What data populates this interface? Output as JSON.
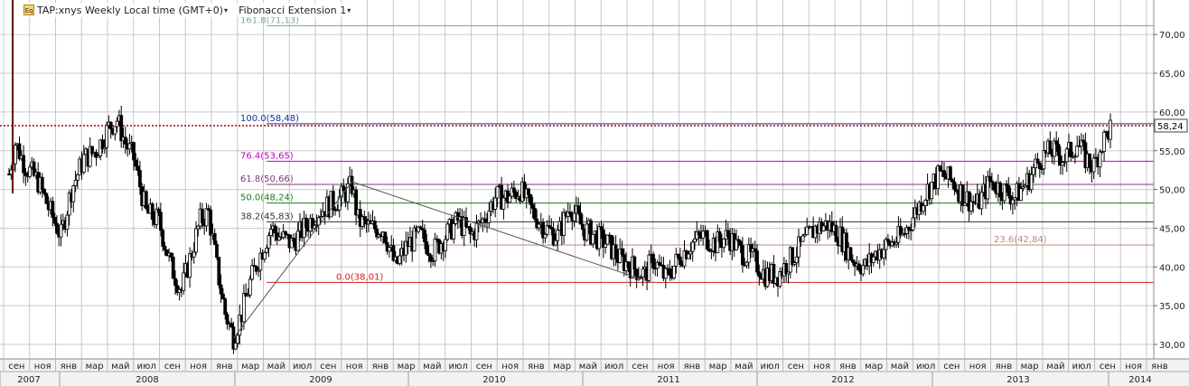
{
  "toolbar": {
    "icon_label": "Eq",
    "symbol": "TAP:xnys Weekly Local time (GMT+0)",
    "study": "Fibonacci Extension 1",
    "arrow": "▾"
  },
  "colors": {
    "candle_up": "#ffffff",
    "candle_down": "#000000",
    "candle_wick": "#000000",
    "grid": "#c8c8c8",
    "price_line": "#b00000",
    "trend": "#555555"
  },
  "chart_data": {
    "type": "candlestick",
    "ylim": [
      28,
      75
    ],
    "y_ticks": [
      "30,00",
      "35,00",
      "40,00",
      "45,00",
      "50,00",
      "55,00",
      "60,00",
      "65,00",
      "70,00"
    ],
    "current_price": "58,24",
    "month_labels": [
      "сен",
      "ноя",
      "янв",
      "мар",
      "май",
      "июл",
      "сен",
      "ноя",
      "янв",
      "мар",
      "май",
      "июл",
      "сен",
      "ноя",
      "янв",
      "мар",
      "май",
      "июл",
      "сен",
      "ноя",
      "янв",
      "мар",
      "май",
      "июл",
      "сен",
      "ноя",
      "янв",
      "мар",
      "май",
      "июл",
      "сен",
      "ноя",
      "янв",
      "мар",
      "май",
      "июл",
      "сен",
      "ноя",
      "янв",
      "мар",
      "май",
      "июл",
      "сен",
      "ноя",
      "янв"
    ],
    "year_labels": [
      "2007",
      "2008",
      "2009",
      "2010",
      "2011",
      "2012",
      "2013",
      "2014"
    ],
    "fib_levels": [
      {
        "label": "161.8(71,13)",
        "value": 71.13,
        "color": "#7aa8a8"
      },
      {
        "label": "100.0(58,48)",
        "value": 58.48,
        "color": "#1a2fa0"
      },
      {
        "label": "76.4(53,65)",
        "value": 53.65,
        "color": "#c000c0"
      },
      {
        "label": "61.8(50,66)",
        "value": 50.66,
        "color": "#7a3a7a"
      },
      {
        "label": "50.0(48,24)",
        "value": 48.24,
        "color": "#1f7a1f"
      },
      {
        "label": "38.2(45,83)",
        "value": 45.83,
        "color": "#333333"
      },
      {
        "label": "23.6(42,84)",
        "value": 42.84,
        "color": "#b88a7a"
      },
      {
        "label": "0.0(38,01)",
        "value": 38.01,
        "color": "#d02020"
      }
    ],
    "trend_points": [
      {
        "week": 108,
        "price": 30.8
      },
      {
        "week": 165,
        "price": 51.0
      },
      {
        "week": 309,
        "price": 38.0
      }
    ],
    "candles_seed": [
      {
        "week": 0,
        "price": 52
      },
      {
        "week": 3,
        "price": 56
      },
      {
        "week": 8,
        "price": 53
      },
      {
        "week": 14,
        "price": 51
      },
      {
        "week": 20,
        "price": 47
      },
      {
        "week": 25,
        "price": 44
      },
      {
        "week": 30,
        "price": 50
      },
      {
        "week": 36,
        "price": 54
      },
      {
        "week": 42,
        "price": 55
      },
      {
        "week": 48,
        "price": 58
      },
      {
        "week": 52,
        "price": 59
      },
      {
        "week": 56,
        "price": 56
      },
      {
        "week": 60,
        "price": 54
      },
      {
        "week": 66,
        "price": 47
      },
      {
        "week": 72,
        "price": 46
      },
      {
        "week": 78,
        "price": 40
      },
      {
        "week": 83,
        "price": 37
      },
      {
        "week": 88,
        "price": 42
      },
      {
        "week": 92,
        "price": 46
      },
      {
        "week": 96,
        "price": 47
      },
      {
        "week": 100,
        "price": 40
      },
      {
        "week": 104,
        "price": 34
      },
      {
        "week": 108,
        "price": 31
      },
      {
        "week": 112,
        "price": 34
      },
      {
        "week": 116,
        "price": 38
      },
      {
        "week": 120,
        "price": 41
      },
      {
        "week": 126,
        "price": 45
      },
      {
        "week": 130,
        "price": 44
      },
      {
        "week": 136,
        "price": 43
      },
      {
        "week": 142,
        "price": 45
      },
      {
        "week": 148,
        "price": 47
      },
      {
        "week": 154,
        "price": 48
      },
      {
        "week": 160,
        "price": 49
      },
      {
        "week": 165,
        "price": 50.5
      },
      {
        "week": 168,
        "price": 46
      },
      {
        "week": 174,
        "price": 45
      },
      {
        "week": 180,
        "price": 45
      },
      {
        "week": 186,
        "price": 40
      },
      {
        "week": 192,
        "price": 43
      },
      {
        "week": 198,
        "price": 44
      },
      {
        "week": 204,
        "price": 42
      },
      {
        "week": 210,
        "price": 44
      },
      {
        "week": 216,
        "price": 46
      },
      {
        "week": 222,
        "price": 44
      },
      {
        "week": 228,
        "price": 46
      },
      {
        "week": 234,
        "price": 49
      },
      {
        "week": 240,
        "price": 49
      },
      {
        "week": 246,
        "price": 50
      },
      {
        "week": 252,
        "price": 47
      },
      {
        "week": 258,
        "price": 45
      },
      {
        "week": 264,
        "price": 44
      },
      {
        "week": 270,
        "price": 48
      },
      {
        "week": 276,
        "price": 45
      },
      {
        "week": 282,
        "price": 44
      },
      {
        "week": 288,
        "price": 43
      },
      {
        "week": 294,
        "price": 41
      },
      {
        "week": 300,
        "price": 40
      },
      {
        "week": 306,
        "price": 39
      },
      {
        "week": 310,
        "price": 41
      },
      {
        "week": 316,
        "price": 38.5
      },
      {
        "week": 322,
        "price": 41
      },
      {
        "week": 328,
        "price": 43
      },
      {
        "week": 334,
        "price": 44
      },
      {
        "week": 340,
        "price": 43
      },
      {
        "week": 346,
        "price": 44
      },
      {
        "week": 352,
        "price": 42
      },
      {
        "week": 358,
        "price": 41
      },
      {
        "week": 364,
        "price": 39
      },
      {
        "week": 370,
        "price": 39
      },
      {
        "week": 376,
        "price": 41
      },
      {
        "week": 382,
        "price": 43
      },
      {
        "week": 388,
        "price": 45
      },
      {
        "week": 394,
        "price": 45.5
      },
      {
        "week": 400,
        "price": 44
      },
      {
        "week": 406,
        "price": 41
      },
      {
        "week": 412,
        "price": 40
      },
      {
        "week": 418,
        "price": 42
      },
      {
        "week": 424,
        "price": 43
      },
      {
        "week": 430,
        "price": 44
      },
      {
        "week": 436,
        "price": 47
      },
      {
        "week": 442,
        "price": 50
      },
      {
        "week": 448,
        "price": 52
      },
      {
        "week": 454,
        "price": 51
      },
      {
        "week": 460,
        "price": 49
      },
      {
        "week": 466,
        "price": 48
      },
      {
        "week": 472,
        "price": 51
      },
      {
        "week": 478,
        "price": 50
      },
      {
        "week": 484,
        "price": 49
      },
      {
        "week": 490,
        "price": 51
      },
      {
        "week": 496,
        "price": 54
      },
      {
        "week": 502,
        "price": 55
      },
      {
        "week": 508,
        "price": 54
      },
      {
        "week": 514,
        "price": 56
      },
      {
        "week": 518,
        "price": 54
      },
      {
        "week": 522,
        "price": 53
      },
      {
        "week": 526,
        "price": 56
      },
      {
        "week": 530,
        "price": 58
      }
    ]
  }
}
